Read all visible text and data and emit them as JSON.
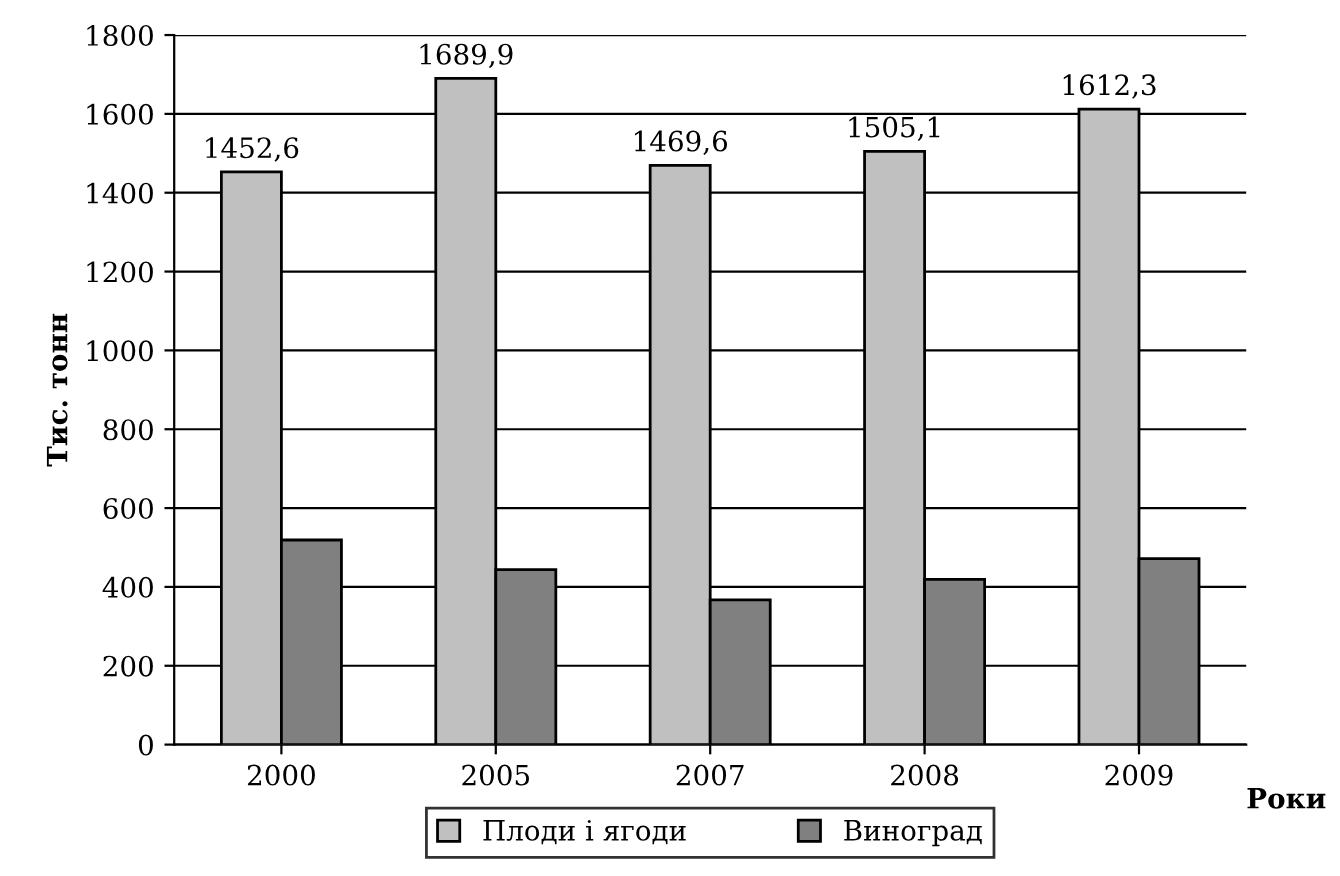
{
  "chart_data": {
    "type": "bar",
    "xlabel": "Роки",
    "ylabel": "Тис. тонн",
    "categories": [
      "2000",
      "2005",
      "2007",
      "2008",
      "2009"
    ],
    "series": [
      {
        "name": "Плоди і ягоди",
        "color": "#c0c0c0",
        "values": [
          1452.6,
          1689.9,
          1469.6,
          1505.1,
          1612.3
        ],
        "value_labels": [
          "1452,6",
          "1689,9",
          "1469,6",
          "1505,1",
          "1612,3"
        ]
      },
      {
        "name": "Виноград",
        "color": "#808080",
        "values": [
          519,
          444,
          367,
          419,
          472
        ]
      }
    ],
    "ylim": [
      0,
      1800
    ],
    "yticks": [
      0,
      200,
      400,
      600,
      800,
      1000,
      1200,
      1400,
      1600,
      1800
    ],
    "grid": "y",
    "legend": "bottom"
  }
}
